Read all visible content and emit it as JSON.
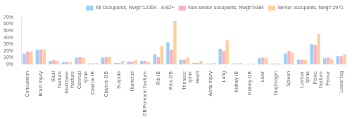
{
  "chart_data": {
    "type": "bar",
    "categories": [
      "Concussion",
      "Brain Injury",
      "Skull\nfracture",
      "Skull base\nfracture",
      "Cervical\nspine",
      "Clavicle IB",
      "Clavicle OB",
      "Scapula",
      "Humerus",
      "OB Forearm fracture",
      "Rib IB",
      "Ribs OB",
      "Thoracic\nspine",
      "Heart",
      "Aorta Injury",
      "Lung",
      "Kidney IB",
      "Kidney OB",
      "Liver",
      "Diaphragm",
      "Spleen",
      "Lumbar\nspine",
      "Pelvic\nfracture",
      "Femur",
      "Lower leg"
    ],
    "series": [
      {
        "name": "All Occupants, Nwgt=12354 - AIS2+",
        "values": [
          16,
          22,
          5,
          3,
          10,
          1,
          10,
          2,
          4,
          5,
          15,
          33,
          7,
          2,
          1,
          23,
          1,
          0,
          9,
          1,
          16,
          7,
          30,
          9,
          12
        ]
      },
      {
        "name": "Non-senior occupants, Nwgt=9384",
        "values": [
          19,
          22,
          6,
          4,
          11,
          1,
          11,
          2,
          4,
          5,
          11,
          22,
          7,
          2,
          1,
          20,
          1,
          0,
          10,
          1,
          20,
          7,
          29,
          10,
          12
        ]
      },
      {
        "name": "Senior occupants, Nwgt=2971",
        "values": [
          19,
          22,
          5,
          3,
          10,
          2,
          11,
          5,
          6,
          3,
          27,
          65,
          10,
          5,
          2,
          36,
          2,
          1,
          9,
          1,
          18,
          7,
          45,
          8,
          15
        ]
      }
    ],
    "ylim": [
      0,
      70
    ],
    "yticks": [
      {
        "value": 0,
        "label": "0%"
      },
      {
        "value": 10,
        "label": "10%"
      },
      {
        "value": 20,
        "label": "20%"
      },
      {
        "value": 30,
        "label": "30%"
      },
      {
        "value": 40,
        "label": "40%"
      },
      {
        "value": 50,
        "label": "50%"
      },
      {
        "value": 60,
        "label": "60%"
      },
      {
        "value": 70,
        "label": "70%"
      }
    ],
    "grid": false,
    "legend": "upper right"
  }
}
